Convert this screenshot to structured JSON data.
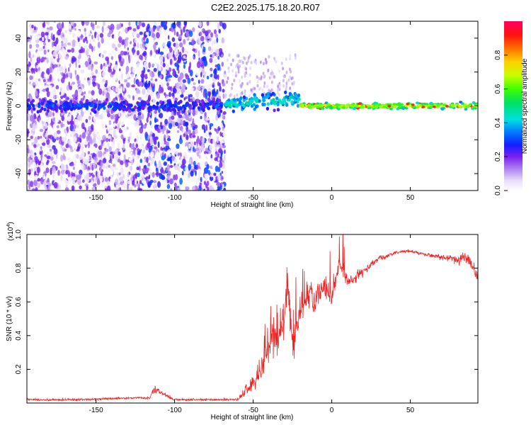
{
  "title": "C2E2.2025.175.18.20.R07",
  "colors": {
    "trace": "#ee2222",
    "axis": "#000000"
  },
  "chart_data": [
    {
      "type": "heatmap",
      "xlabel": "Height of straight line (km)",
      "ylabel": "Frequency (Hz)",
      "xlim": [
        -194,
        93
      ],
      "ylim": [
        -50,
        50
      ],
      "xticks": [
        -150,
        -100,
        -50,
        0,
        50
      ],
      "xtick_labels": [
        "-150",
        "-100",
        "-50",
        "0",
        "50"
      ],
      "yticks": [
        -40,
        -20,
        0,
        20,
        40
      ],
      "ytick_labels": [
        "-40",
        "-20",
        "0",
        "20",
        "40"
      ],
      "colorbar": {
        "label": "Normalized spectral amplitude",
        "range": [
          0,
          1
        ],
        "ticks": [
          0.0,
          0.2,
          0.4,
          0.6,
          0.8
        ],
        "tick_labels": [
          "0.0",
          "0.2",
          "0.4",
          "0.6",
          "0.8"
        ]
      },
      "features": [
        {
          "x_range": [
            -194,
            -68
          ],
          "freq_center": 0,
          "level": 0.3,
          "note": "broadband speckle, narrow band near 0 Hz"
        },
        {
          "x_range": [
            -68,
            -20
          ],
          "freq_center": 2,
          "level": 0.45
        },
        {
          "x_range": [
            -20,
            93
          ],
          "freq_center": 0,
          "level": 0.7
        }
      ]
    },
    {
      "type": "line",
      "xlabel": "Height of straight line (km)",
      "ylabel": "SNR (10 * v/v)",
      "exponent_label": "(x10",
      "exponent_sup": "4",
      "exponent_close": ")",
      "xlim": [
        -194,
        93
      ],
      "ylim": [
        0,
        1.0
      ],
      "xticks": [
        -150,
        -100,
        -50,
        0,
        50
      ],
      "xtick_labels": [
        "-150",
        "-100",
        "-50",
        "0",
        "50"
      ],
      "yticks": [
        0.2,
        0.4,
        0.6,
        0.8,
        1.0
      ],
      "ytick_labels": [
        "0.2",
        "0.4",
        "0.6",
        "0.8",
        "1.0"
      ],
      "series": [
        {
          "color": "#ee2222",
          "x": [
            -194,
            -160,
            -130,
            -116,
            -113,
            -100,
            -80,
            -60,
            -55,
            -50,
            -45,
            -40,
            -35,
            -30,
            -28,
            -25,
            -20,
            -15,
            -10,
            -5,
            0,
            5,
            10,
            15,
            20,
            25,
            30,
            35,
            40,
            45,
            50,
            55,
            60,
            65,
            70,
            75,
            80,
            85,
            88,
            90,
            93
          ],
          "y": [
            0.02,
            0.02,
            0.03,
            0.03,
            0.08,
            0.02,
            0.02,
            0.02,
            0.07,
            0.12,
            0.18,
            0.35,
            0.4,
            0.5,
            0.7,
            0.35,
            0.55,
            0.65,
            0.6,
            0.7,
            0.62,
            0.85,
            0.72,
            0.75,
            0.78,
            0.82,
            0.86,
            0.87,
            0.89,
            0.9,
            0.9,
            0.89,
            0.88,
            0.87,
            0.87,
            0.86,
            0.85,
            0.86,
            0.84,
            0.82,
            0.74
          ],
          "noise": [
            0.01,
            0.01,
            0.01,
            0.01,
            0.03,
            0.01,
            0.01,
            0.01,
            0.05,
            0.08,
            0.12,
            0.18,
            0.2,
            0.22,
            0.2,
            0.2,
            0.15,
            0.14,
            0.12,
            0.1,
            0.09,
            0.08,
            0.06,
            0.05,
            0.04,
            0.03,
            0.025,
            0.02,
            0.015,
            0.015,
            0.012,
            0.012,
            0.015,
            0.02,
            0.025,
            0.03,
            0.04,
            0.05,
            0.05,
            0.06,
            0.05
          ]
        }
      ]
    }
  ]
}
